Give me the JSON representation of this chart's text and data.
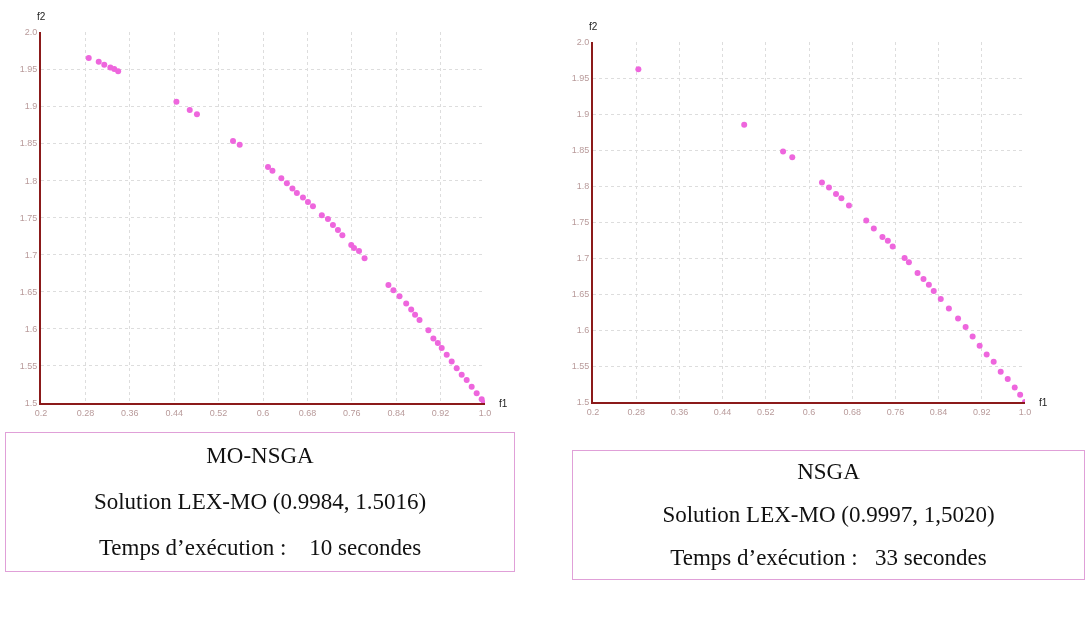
{
  "chart_data": [
    {
      "type": "scatter",
      "xlabel": "f1",
      "ylabel": "f2",
      "marker": "circle",
      "grid": true,
      "xlim": [
        0.2,
        1.0
      ],
      "xticks": [
        0.2,
        0.28,
        0.36,
        0.44,
        0.52,
        0.6,
        0.68,
        0.76,
        0.84,
        0.92,
        {
          "value": 1.0,
          "label": "1.0"
        }
      ],
      "ylim": [
        1.5,
        2.0
      ],
      "yticks": [
        1.5,
        1.55,
        1.6,
        1.65,
        1.7,
        1.75,
        1.8,
        1.85,
        1.9,
        1.95,
        {
          "value": 2.0,
          "label": "2.0"
        }
      ],
      "series": [
        {
          "color": "#ee66dd",
          "x": [
            0.286,
            0.304,
            0.314,
            0.325,
            0.332,
            0.339,
            0.444,
            0.468,
            0.481,
            0.546,
            0.558,
            0.609,
            0.617,
            0.633,
            0.643,
            0.653,
            0.661,
            0.672,
            0.681,
            0.69,
            0.706,
            0.717,
            0.726,
            0.735,
            0.743,
            0.759,
            0.764,
            0.773,
            0.783,
            0.826,
            0.835,
            0.846,
            0.858,
            0.867,
            0.874,
            0.882,
            0.898,
            0.907,
            0.915,
            0.922,
            0.931,
            0.94,
            0.949,
            0.958,
            0.967,
            0.976,
            0.985,
            0.994,
            0.998
          ],
          "values": [
            1.965,
            1.96,
            1.956,
            1.952,
            1.95,
            1.947,
            1.906,
            1.895,
            1.889,
            1.853,
            1.848,
            1.818,
            1.813,
            1.803,
            1.796,
            1.789,
            1.783,
            1.777,
            1.771,
            1.765,
            1.753,
            1.748,
            1.74,
            1.733,
            1.726,
            1.713,
            1.709,
            1.705,
            1.695,
            1.659,
            1.652,
            1.644,
            1.634,
            1.626,
            1.619,
            1.612,
            1.598,
            1.587,
            1.581,
            1.574,
            1.565,
            1.556,
            1.547,
            1.538,
            1.531,
            1.522,
            1.513,
            1.505,
            1.5
          ]
        }
      ],
      "annotations": [
        "MO-NSGA",
        "Solution LEX-MO (0.9984, 1.5016)",
        "Temps d’exécution :    10 secondes"
      ]
    },
    {
      "type": "scatter",
      "xlabel": "f1",
      "ylabel": "f2",
      "marker": "circle",
      "grid": true,
      "xlim": [
        0.2,
        1.0
      ],
      "xticks": [
        0.2,
        0.28,
        0.36,
        0.44,
        0.52,
        0.6,
        0.68,
        0.76,
        0.84,
        0.92,
        {
          "value": 1.0,
          "label": "1.0"
        }
      ],
      "ylim": [
        1.5,
        2.0
      ],
      "yticks": [
        1.5,
        1.55,
        1.6,
        1.65,
        1.7,
        1.75,
        1.8,
        1.85,
        1.9,
        1.95,
        {
          "value": 2.0,
          "label": "2.0"
        }
      ],
      "series": [
        {
          "color": "#ee66dd",
          "x": [
            0.284,
            0.48,
            0.552,
            0.569,
            0.624,
            0.637,
            0.65,
            0.66,
            0.674,
            0.706,
            0.72,
            0.736,
            0.746,
            0.755,
            0.777,
            0.785,
            0.801,
            0.812,
            0.822,
            0.831,
            0.844,
            0.859,
            0.876,
            0.89,
            0.903,
            0.916,
            0.929,
            0.942,
            0.955,
            0.968,
            0.981,
            0.991,
            1.0
          ],
          "values": [
            1.962,
            1.885,
            1.848,
            1.84,
            1.805,
            1.798,
            1.789,
            1.783,
            1.773,
            1.752,
            1.741,
            1.729,
            1.724,
            1.716,
            1.7,
            1.694,
            1.679,
            1.671,
            1.663,
            1.654,
            1.643,
            1.63,
            1.616,
            1.604,
            1.591,
            1.578,
            1.566,
            1.556,
            1.542,
            1.532,
            1.52,
            1.51,
            1.5
          ]
        }
      ],
      "annotations": [
        "NSGA",
        "Solution LEX-MO (0.9997, 1,5020)",
        "Temps d’exécution :   33 secondes"
      ]
    }
  ]
}
